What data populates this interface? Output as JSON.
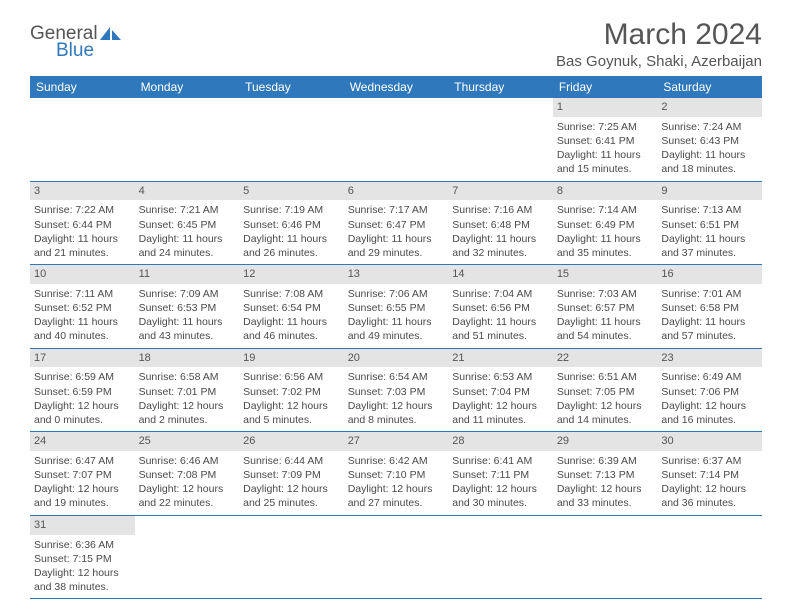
{
  "logo": {
    "text1": "General",
    "text2": "Blue"
  },
  "title": "March 2024",
  "location": "Bas Goynuk, Shaki, Azerbaijan",
  "colors": {
    "accent": "#2f78bc",
    "daynum_bg": "#e4e4e4",
    "text": "#4a4a4a",
    "white": "#ffffff"
  },
  "weekdays": [
    "Sunday",
    "Monday",
    "Tuesday",
    "Wednesday",
    "Thursday",
    "Friday",
    "Saturday"
  ],
  "firstDayIndex": 5,
  "daysInMonth": 31,
  "days": {
    "1": {
      "sunrise": "7:25 AM",
      "sunset": "6:41 PM",
      "daylight": "11 hours and 15 minutes."
    },
    "2": {
      "sunrise": "7:24 AM",
      "sunset": "6:43 PM",
      "daylight": "11 hours and 18 minutes."
    },
    "3": {
      "sunrise": "7:22 AM",
      "sunset": "6:44 PM",
      "daylight": "11 hours and 21 minutes."
    },
    "4": {
      "sunrise": "7:21 AM",
      "sunset": "6:45 PM",
      "daylight": "11 hours and 24 minutes."
    },
    "5": {
      "sunrise": "7:19 AM",
      "sunset": "6:46 PM",
      "daylight": "11 hours and 26 minutes."
    },
    "6": {
      "sunrise": "7:17 AM",
      "sunset": "6:47 PM",
      "daylight": "11 hours and 29 minutes."
    },
    "7": {
      "sunrise": "7:16 AM",
      "sunset": "6:48 PM",
      "daylight": "11 hours and 32 minutes."
    },
    "8": {
      "sunrise": "7:14 AM",
      "sunset": "6:49 PM",
      "daylight": "11 hours and 35 minutes."
    },
    "9": {
      "sunrise": "7:13 AM",
      "sunset": "6:51 PM",
      "daylight": "11 hours and 37 minutes."
    },
    "10": {
      "sunrise": "7:11 AM",
      "sunset": "6:52 PM",
      "daylight": "11 hours and 40 minutes."
    },
    "11": {
      "sunrise": "7:09 AM",
      "sunset": "6:53 PM",
      "daylight": "11 hours and 43 minutes."
    },
    "12": {
      "sunrise": "7:08 AM",
      "sunset": "6:54 PM",
      "daylight": "11 hours and 46 minutes."
    },
    "13": {
      "sunrise": "7:06 AM",
      "sunset": "6:55 PM",
      "daylight": "11 hours and 49 minutes."
    },
    "14": {
      "sunrise": "7:04 AM",
      "sunset": "6:56 PM",
      "daylight": "11 hours and 51 minutes."
    },
    "15": {
      "sunrise": "7:03 AM",
      "sunset": "6:57 PM",
      "daylight": "11 hours and 54 minutes."
    },
    "16": {
      "sunrise": "7:01 AM",
      "sunset": "6:58 PM",
      "daylight": "11 hours and 57 minutes."
    },
    "17": {
      "sunrise": "6:59 AM",
      "sunset": "6:59 PM",
      "daylight": "12 hours and 0 minutes."
    },
    "18": {
      "sunrise": "6:58 AM",
      "sunset": "7:01 PM",
      "daylight": "12 hours and 2 minutes."
    },
    "19": {
      "sunrise": "6:56 AM",
      "sunset": "7:02 PM",
      "daylight": "12 hours and 5 minutes."
    },
    "20": {
      "sunrise": "6:54 AM",
      "sunset": "7:03 PM",
      "daylight": "12 hours and 8 minutes."
    },
    "21": {
      "sunrise": "6:53 AM",
      "sunset": "7:04 PM",
      "daylight": "12 hours and 11 minutes."
    },
    "22": {
      "sunrise": "6:51 AM",
      "sunset": "7:05 PM",
      "daylight": "12 hours and 14 minutes."
    },
    "23": {
      "sunrise": "6:49 AM",
      "sunset": "7:06 PM",
      "daylight": "12 hours and 16 minutes."
    },
    "24": {
      "sunrise": "6:47 AM",
      "sunset": "7:07 PM",
      "daylight": "12 hours and 19 minutes."
    },
    "25": {
      "sunrise": "6:46 AM",
      "sunset": "7:08 PM",
      "daylight": "12 hours and 22 minutes."
    },
    "26": {
      "sunrise": "6:44 AM",
      "sunset": "7:09 PM",
      "daylight": "12 hours and 25 minutes."
    },
    "27": {
      "sunrise": "6:42 AM",
      "sunset": "7:10 PM",
      "daylight": "12 hours and 27 minutes."
    },
    "28": {
      "sunrise": "6:41 AM",
      "sunset": "7:11 PM",
      "daylight": "12 hours and 30 minutes."
    },
    "29": {
      "sunrise": "6:39 AM",
      "sunset": "7:13 PM",
      "daylight": "12 hours and 33 minutes."
    },
    "30": {
      "sunrise": "6:37 AM",
      "sunset": "7:14 PM",
      "daylight": "12 hours and 36 minutes."
    },
    "31": {
      "sunrise": "6:36 AM",
      "sunset": "7:15 PM",
      "daylight": "12 hours and 38 minutes."
    }
  },
  "labels": {
    "sunrise": "Sunrise:",
    "sunset": "Sunset:",
    "daylight": "Daylight:"
  }
}
